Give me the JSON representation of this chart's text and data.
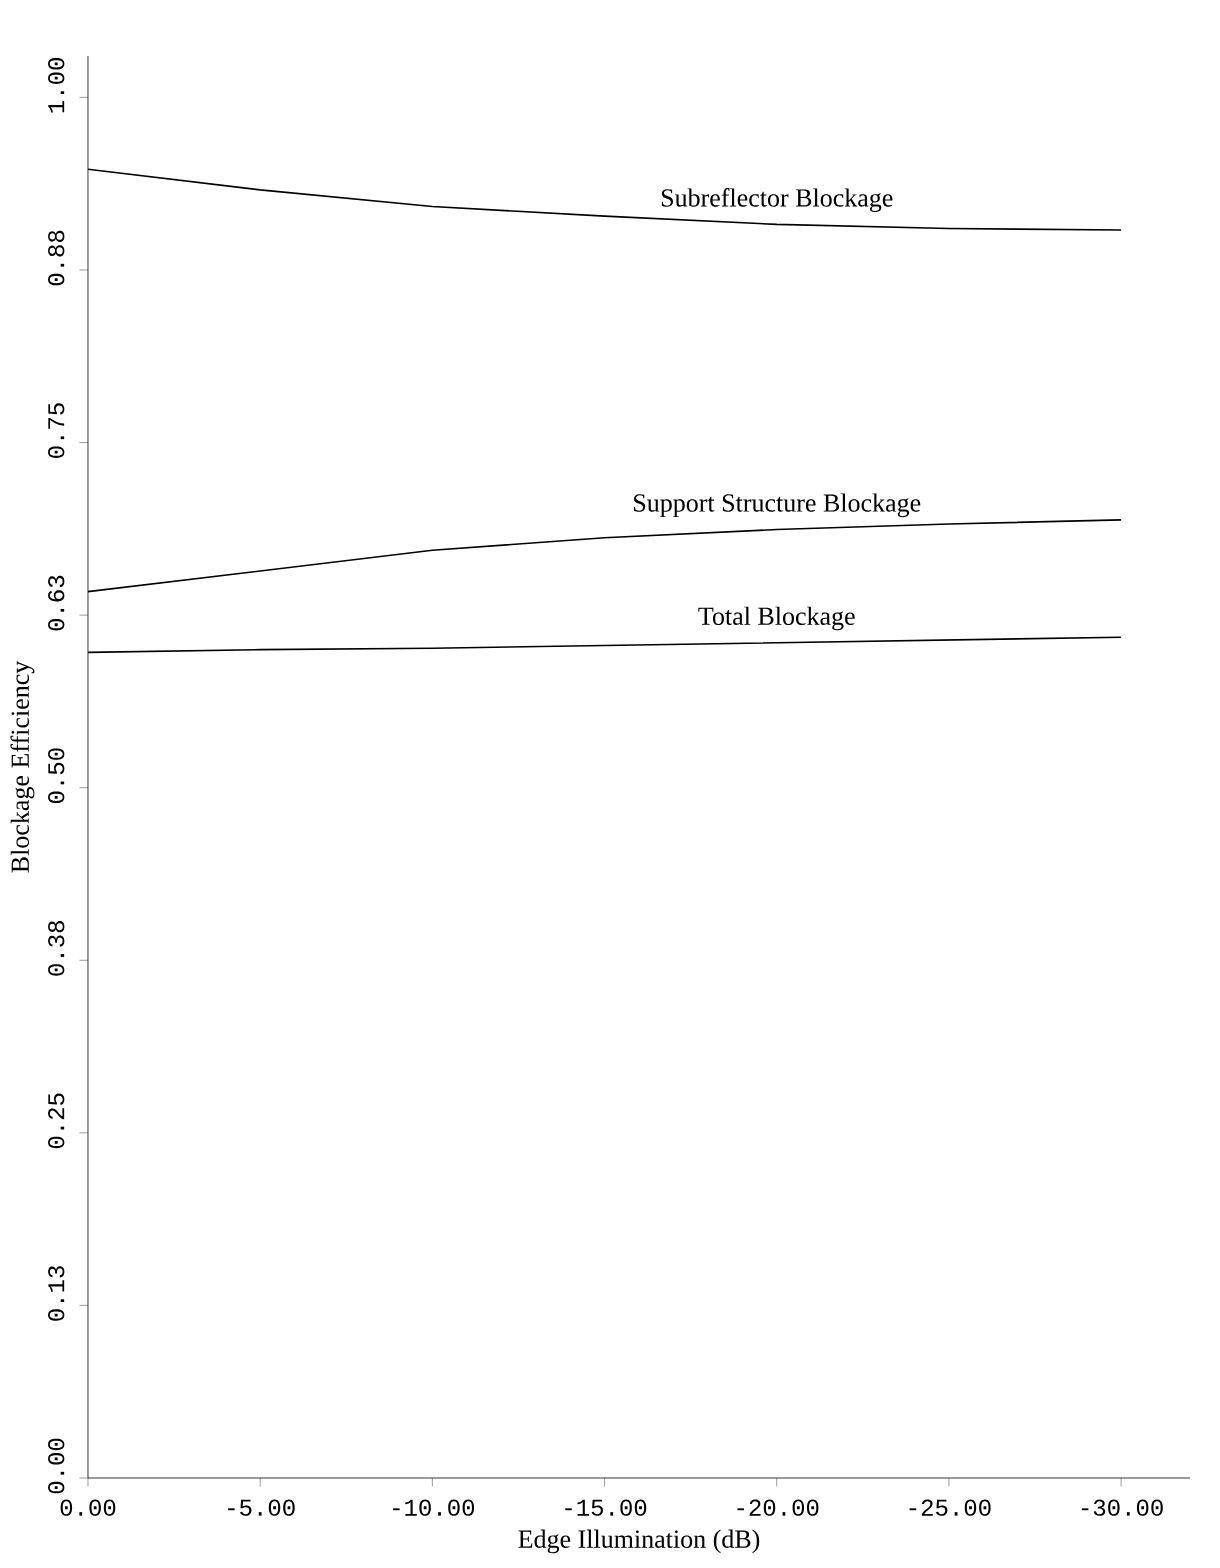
{
  "chart_data": {
    "type": "line",
    "xlabel": "Edge Illumination  (dB)",
    "ylabel": "Blockage Efficiency",
    "x": [
      0,
      -5,
      -10,
      -15,
      -20,
      -25,
      -30
    ],
    "series": [
      {
        "name": "Subreflector Blockage",
        "color": "#000000",
        "values": [
          0.948,
          0.933,
          0.921,
          0.914,
          0.908,
          0.905,
          0.904
        ]
      },
      {
        "name": "Support Structure Blockage",
        "color": "#000000",
        "values": [
          0.642,
          0.657,
          0.672,
          0.681,
          0.687,
          0.691,
          0.694
        ]
      },
      {
        "name": "Total Blockage",
        "color": "#000000",
        "values": [
          0.598,
          0.6,
          0.601,
          0.603,
          0.605,
          0.607,
          0.609
        ]
      }
    ],
    "xlim": [
      0,
      -32
    ],
    "ylim": [
      0,
      1.03
    ],
    "xticks": [
      {
        "value": 0,
        "label": "0.00"
      },
      {
        "value": -5,
        "label": "-5.00"
      },
      {
        "value": -10,
        "label": "-10.00"
      },
      {
        "value": -15,
        "label": "-15.00"
      },
      {
        "value": -20,
        "label": "-20.00"
      },
      {
        "value": -25,
        "label": "-25.00"
      },
      {
        "value": -30,
        "label": "-30.00"
      }
    ],
    "yticks": [
      {
        "value": 0,
        "label": "0.00"
      },
      {
        "value": 0.125,
        "label": "0.13"
      },
      {
        "value": 0.25,
        "label": "0.25"
      },
      {
        "value": 0.375,
        "label": "0.38"
      },
      {
        "value": 0.5,
        "label": "0.50"
      },
      {
        "value": 0.625,
        "label": "0.63"
      },
      {
        "value": 0.75,
        "label": "0.75"
      },
      {
        "value": 0.875,
        "label": "0.88"
      },
      {
        "value": 1.0,
        "label": "1.00"
      }
    ],
    "grid": false,
    "marker": "none",
    "line_style": "solid"
  }
}
